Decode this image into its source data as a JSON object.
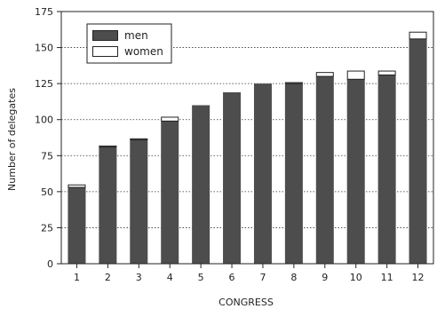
{
  "chart_data": {
    "type": "bar",
    "stacked": true,
    "categories": [
      "1",
      "2",
      "3",
      "4",
      "5",
      "6",
      "7",
      "8",
      "9",
      "10",
      "11",
      "12"
    ],
    "series": [
      {
        "name": "men",
        "values": [
          53,
          81,
          86,
          99,
          110,
          119,
          125,
          125,
          130,
          128,
          131,
          156
        ],
        "color": "#4d4d4d"
      },
      {
        "name": "women",
        "values": [
          2,
          1,
          1,
          3,
          0,
          0,
          0,
          1,
          3,
          6,
          3,
          5
        ],
        "color": "#ffffff"
      }
    ],
    "xlabel": "CONGRESS",
    "ylabel": "Number of delegates",
    "ylim": [
      0,
      175
    ],
    "yticks": [
      0,
      25,
      50,
      75,
      100,
      125,
      150,
      175
    ],
    "grid": "horizontal-dotted",
    "legend_position": "top-left"
  }
}
